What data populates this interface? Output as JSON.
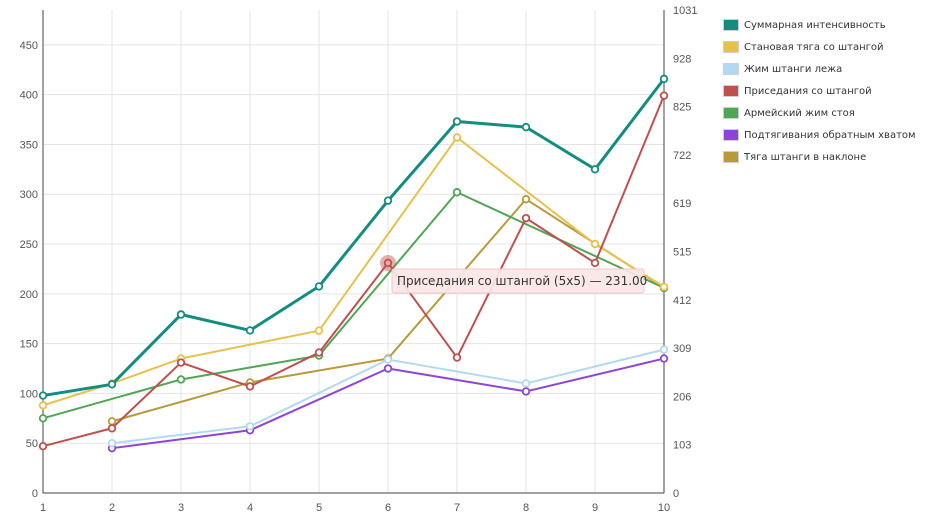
{
  "chart_data": {
    "type": "line",
    "x": [
      1,
      2,
      3,
      4,
      5,
      6,
      7,
      8,
      9,
      10
    ],
    "x_ticks": [
      "1",
      "2",
      "3",
      "4",
      "5",
      "6",
      "7",
      "8",
      "9",
      "10"
    ],
    "left_axis": {
      "ylim": [
        0,
        485
      ],
      "ticks": [
        "0",
        "50",
        "100",
        "150",
        "200",
        "250",
        "300",
        "350",
        "400",
        "450"
      ],
      "tick_values": [
        0,
        50,
        100,
        150,
        200,
        250,
        300,
        350,
        400,
        450
      ]
    },
    "right_axis": {
      "ylim": [
        0,
        1031
      ],
      "ticks": [
        "0",
        "103",
        "206",
        "309",
        "412",
        "515",
        "619",
        "722",
        "825",
        "928",
        "1031"
      ],
      "tick_values": [
        0,
        103,
        206,
        309,
        412,
        515,
        619,
        722,
        825,
        928,
        1031
      ]
    },
    "grid": true,
    "legend_position": "right",
    "series": [
      {
        "name": "Суммарная интенсивность",
        "color": "#138d80",
        "width": 3,
        "axis": "right",
        "values": [
          208,
          232,
          381,
          347,
          441,
          624,
          793,
          781,
          691,
          884
        ]
      },
      {
        "name": "Становая тяга со штангой",
        "color": "#e8c14d",
        "width": 2,
        "axis": "left",
        "values": [
          88,
          110,
          135,
          null,
          163,
          null,
          357,
          null,
          250,
          207
        ]
      },
      {
        "name": "Жим штанги лежа",
        "color": "#b3d9f2",
        "width": 2,
        "axis": "left",
        "values": [
          null,
          50,
          null,
          67,
          null,
          134,
          null,
          110,
          null,
          144
        ]
      },
      {
        "name": "Приседания со штангой",
        "color": "#c0504d",
        "width": 2,
        "axis": "left",
        "values": [
          47,
          65,
          131,
          107,
          141,
          231,
          136,
          276,
          231,
          399
        ]
      },
      {
        "name": "Армейский жим стоя",
        "color": "#4fa654",
        "width": 2,
        "axis": "left",
        "values": [
          75,
          null,
          114,
          null,
          138,
          null,
          302,
          null,
          null,
          206
        ]
      },
      {
        "name": "Подтягивания обратным хватом",
        "color": "#8e44d6",
        "width": 2,
        "axis": "left",
        "values": [
          null,
          45,
          null,
          63,
          null,
          125,
          null,
          102,
          null,
          135
        ]
      },
      {
        "name": "Тяга штанги в наклоне",
        "color": "#b89a3c",
        "width": 2,
        "axis": "left",
        "values": [
          null,
          72,
          null,
          111,
          null,
          135,
          null,
          295,
          null,
          206
        ]
      }
    ],
    "tooltip": {
      "series_index": 3,
      "point_index": 5,
      "text": "Приседания со штангой (5x5) — 231.00"
    }
  }
}
